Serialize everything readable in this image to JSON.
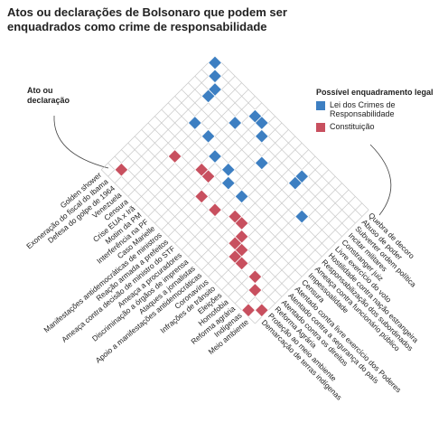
{
  "chart_data": {
    "type": "matrix",
    "title_lines": [
      "Atos ou declarações de Bolsonaro que podem ser",
      "enquadrados como crime de responsabilidade"
    ],
    "row_axis_label_lines": [
      "Ato ou",
      "declaração"
    ],
    "legend_title": "Possível enquadramento legal",
    "series": [
      {
        "name": "Lei dos Crimes de Responsabilidade",
        "color": "#3d7fc2"
      },
      {
        "name": "Constituição",
        "color": "#c8505f"
      }
    ],
    "rows": [
      "Golden shower",
      "Exoneração do fiscal do Ibama",
      "Defesa do golpe de 1964",
      "Venezuela",
      "Censura",
      "Crise EUA x Irã",
      "Motim da PM",
      "Interferência na PF",
      "Caso Marielle",
      "Manifestações antidemocráticas de ministros",
      "Reação armada a prefeitos",
      "Ameaça contra decisão de ministro do STF",
      "Ameaça a procuradores",
      "Discriminação a órgãos de imprensa",
      "Ataques a jornalistas",
      "Apoio a manifestações antidemocráticas",
      "Coronavírus",
      "Infrações de trânsito",
      "Eleições",
      "Homofobia",
      "Reforma agrária",
      "Indígenas",
      "Meio ambiente"
    ],
    "columns": [
      {
        "label": "Quebra de decoro",
        "series": 0
      },
      {
        "label": "Abuso de poder",
        "series": 0
      },
      {
        "label": "Subverter ordem política",
        "series": 0
      },
      {
        "label": "Incitar militares",
        "series": 0
      },
      {
        "label": "Constranger juiz",
        "series": 0
      },
      {
        "label": "Livre exercício do voto",
        "series": 0
      },
      {
        "label": "Hostilidade contra nação estrangeira",
        "series": 0
      },
      {
        "label": "Responsabilização dos subordinados",
        "series": 0
      },
      {
        "label": "Ameaça contra funcionário público",
        "series": 0
      },
      {
        "label": "Impessoalidade",
        "series": 1
      },
      {
        "label": "Censura",
        "series": 1
      },
      {
        "label": "Atentado contra livre exercício dos Poderes",
        "series": 1
      },
      {
        "label": "Atentado contra a segurança do país",
        "series": 1
      },
      {
        "label": "Atentado contra os direitos",
        "series": 1
      },
      {
        "label": "Reforma Agrária",
        "series": 1
      },
      {
        "label": "Proteção ao meio ambiente",
        "series": 1
      },
      {
        "label": "Demarcação de terras indígenas",
        "series": 1
      }
    ],
    "cells": [
      [
        0,
        0
      ],
      [
        1,
        1
      ],
      [
        2,
        2
      ],
      [
        2,
        3
      ],
      [
        3,
        6
      ],
      [
        5,
        6
      ],
      [
        6,
        3
      ],
      [
        7,
        1
      ],
      [
        7,
        7
      ],
      [
        8,
        1
      ],
      [
        9,
        2
      ],
      [
        9,
        7
      ],
      [
        10,
        8
      ],
      [
        11,
        4
      ],
      [
        12,
        8
      ],
      [
        15,
        2
      ],
      [
        15,
        3
      ],
      [
        18,
        5
      ],
      [
        1,
        15
      ],
      [
        4,
        10
      ],
      [
        7,
        9
      ],
      [
        8,
        9
      ],
      [
        9,
        11
      ],
      [
        11,
        11
      ],
      [
        13,
        10
      ],
      [
        14,
        10
      ],
      [
        15,
        11
      ],
      [
        15,
        12
      ],
      [
        16,
        12
      ],
      [
        16,
        13
      ],
      [
        17,
        13
      ],
      [
        19,
        13
      ],
      [
        20,
        14
      ],
      [
        21,
        16
      ],
      [
        22,
        15
      ]
    ]
  }
}
